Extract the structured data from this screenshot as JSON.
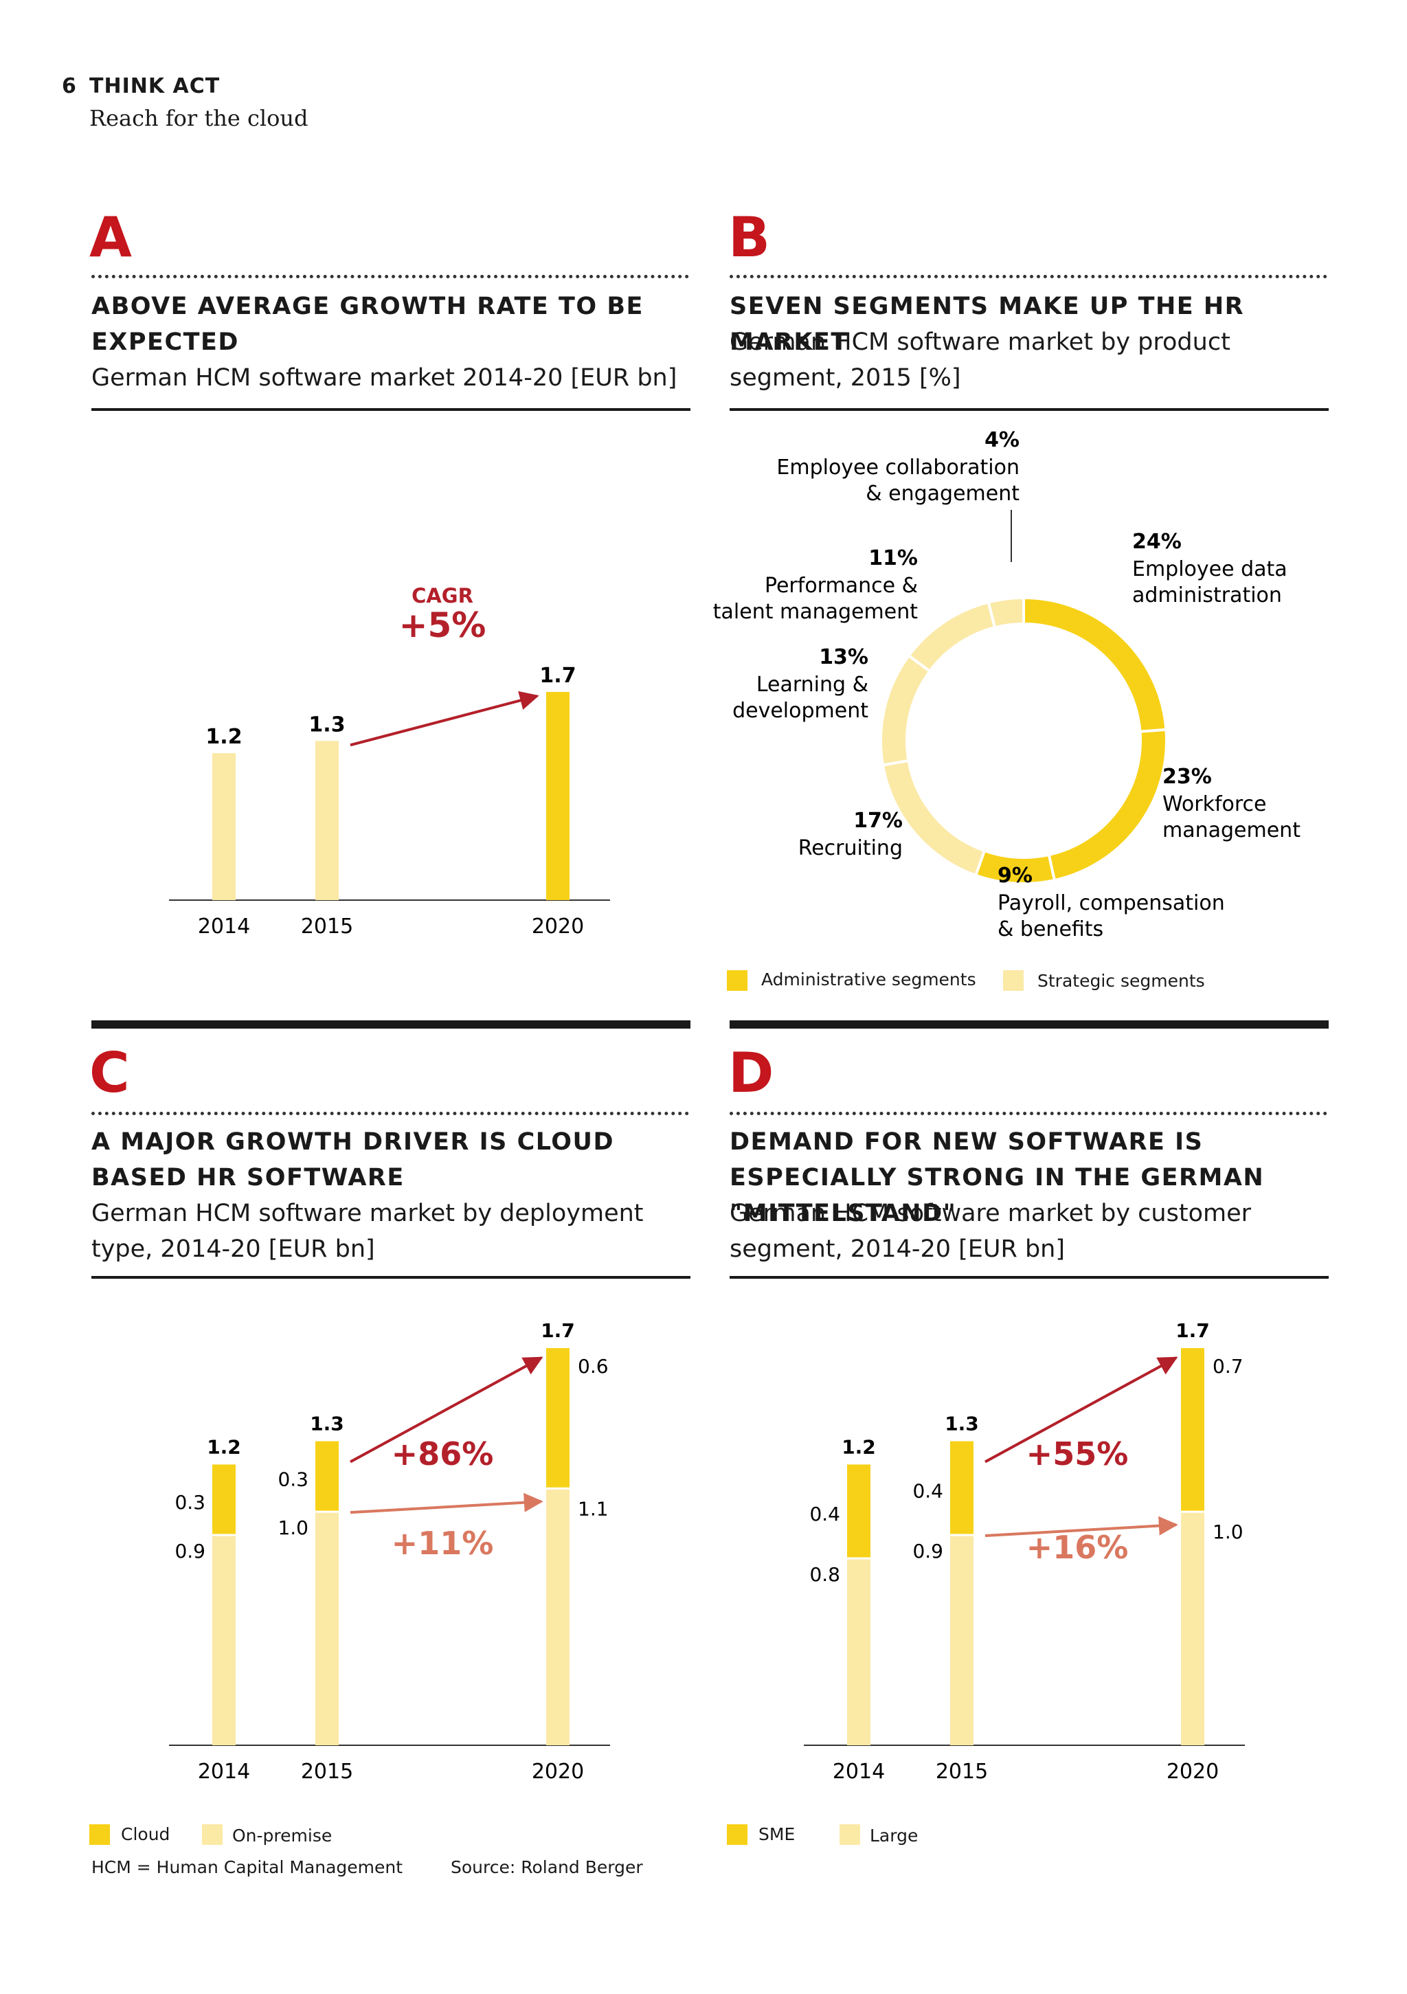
{
  "header": {
    "page_number": "6",
    "brand": "THINK ACT",
    "subtitle": "Reach for the cloud"
  },
  "colors": {
    "admin": "#f7d117",
    "strategic": "#fbe9a6",
    "red": "#b3202a",
    "salmon": "#d9785f"
  },
  "panels": {
    "a": {
      "letter": "A",
      "title": "ABOVE AVERAGE GROWTH RATE TO BE EXPECTED",
      "subtitle": "German HCM software market 2014-20 [EUR bn]"
    },
    "b": {
      "letter": "B",
      "title": "SEVEN SEGMENTS MAKE UP THE HR MARKET",
      "subtitle": "German HCM software market by product segment, 2015 [%]"
    },
    "c": {
      "letter": "C",
      "title": "A MAJOR GROWTH DRIVER IS CLOUD BASED HR SOFTWARE",
      "subtitle": "German HCM software market by deployment type, 2014-20 [EUR bn]"
    },
    "d": {
      "letter": "D",
      "title": "DEMAND FOR NEW SOFTWARE IS ESPECIALLY STRONG IN THE GERMAN \"MITTELSTAND\"",
      "subtitle": "German HCM software market by customer segment, 2014-20 [EUR bn]"
    }
  },
  "chart_data": [
    {
      "id": "A",
      "type": "bar",
      "categories": [
        "2014",
        "2015",
        "2020"
      ],
      "values": [
        1.2,
        1.3,
        1.7
      ],
      "value_labels": [
        "1.2",
        "1.3",
        "1.7"
      ],
      "ylim": [
        0,
        1.7
      ],
      "annotation": {
        "label": "CAGR",
        "value": "+5%"
      }
    },
    {
      "id": "B",
      "type": "pie",
      "slices": [
        {
          "pct": 24,
          "pct_label": "24%",
          "line1": "Employee data",
          "line2": "administration",
          "group": "admin"
        },
        {
          "pct": 23,
          "pct_label": "23%",
          "line1": "Workforce",
          "line2": "management",
          "group": "admin"
        },
        {
          "pct": 9,
          "pct_label": "9%",
          "line1": "Payroll, compensation",
          "line2": "& benefits",
          "group": "admin"
        },
        {
          "pct": 17,
          "pct_label": "17%",
          "line1": "Recruiting",
          "line2": "",
          "group": "strategic"
        },
        {
          "pct": 13,
          "pct_label": "13%",
          "line1": "Learning &",
          "line2": "development",
          "group": "strategic"
        },
        {
          "pct": 11,
          "pct_label": "11%",
          "line1": "Performance &",
          "line2": "talent management",
          "group": "strategic"
        },
        {
          "pct": 4,
          "pct_label": "4%",
          "line1": "Employee collaboration",
          "line2": "& engagement",
          "group": "strategic"
        }
      ],
      "legend": {
        "admin": "Administrative segments",
        "strategic": "Strategic segments"
      }
    },
    {
      "id": "C",
      "type": "bar",
      "categories": [
        "2014",
        "2015",
        "2020"
      ],
      "series": [
        {
          "name": "On-premise",
          "values": [
            0.9,
            1.0,
            1.1
          ],
          "labels": [
            "0.9",
            "1.0",
            "1.1"
          ]
        },
        {
          "name": "Cloud",
          "values": [
            0.3,
            0.3,
            0.6
          ],
          "labels": [
            "0.3",
            "0.3",
            "0.6"
          ]
        }
      ],
      "totals": [
        "1.2",
        "1.3",
        "1.7"
      ],
      "ylim": [
        0,
        1.7
      ],
      "growth": {
        "top": "+86%",
        "bottom": "+11%"
      },
      "legend": {
        "top": "Cloud",
        "bottom": "On-premise"
      }
    },
    {
      "id": "D",
      "type": "bar",
      "categories": [
        "2014",
        "2015",
        "2020"
      ],
      "series": [
        {
          "name": "Large",
          "values": [
            0.8,
            0.9,
            1.0
          ],
          "labels": [
            "0.8",
            "0.9",
            "1.0"
          ]
        },
        {
          "name": "SME",
          "values": [
            0.4,
            0.4,
            0.7
          ],
          "labels": [
            "0.4",
            "0.4",
            "0.7"
          ]
        }
      ],
      "totals": [
        "1.2",
        "1.3",
        "1.7"
      ],
      "ylim": [
        0,
        1.7
      ],
      "growth": {
        "top": "+55%",
        "bottom": "+16%"
      },
      "legend": {
        "top": "SME",
        "bottom": "Large"
      }
    }
  ],
  "footer": {
    "note": "HCM = Human Capital Management",
    "source": "Source: Roland Berger"
  }
}
